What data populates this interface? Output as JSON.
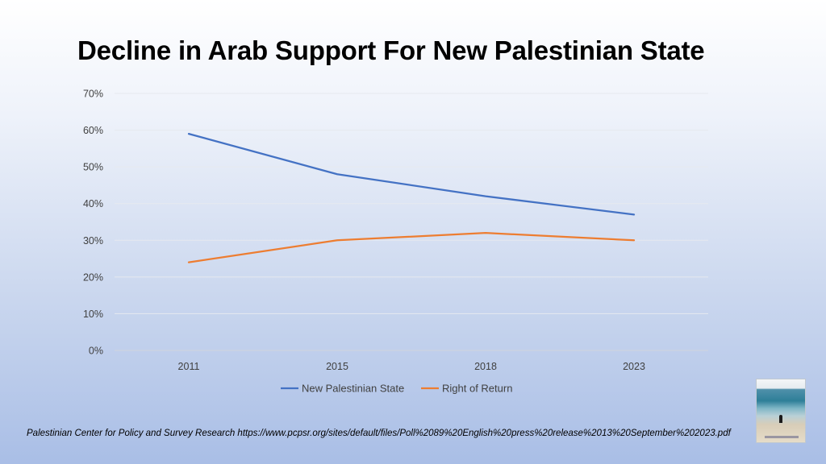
{
  "title": "Decline in Arab Support For New Palestinian State",
  "source": "Palestinian Center for Policy and Survey Research https://www.pcpsr.org/sites/default/files/Poll%2089%20English%20press%20release%2013%20September%202023.pdf",
  "chart_data": {
    "type": "line",
    "title": "",
    "xlabel": "",
    "ylabel": "",
    "categories": [
      "2011",
      "2015",
      "2018",
      "2023"
    ],
    "ylim": [
      0,
      70
    ],
    "yticks": [
      0,
      10,
      20,
      30,
      40,
      50,
      60,
      70
    ],
    "ytick_labels": [
      "0%",
      "10%",
      "20%",
      "30%",
      "40%",
      "50%",
      "60%",
      "70%"
    ],
    "grid": true,
    "legend": "bottom",
    "series": [
      {
        "name": "New Palestinian State",
        "color": "#4472C4",
        "values": [
          59,
          48,
          42,
          37
        ]
      },
      {
        "name": "Right of Return",
        "color": "#ED7D31",
        "values": [
          24,
          30,
          32,
          30
        ]
      }
    ]
  },
  "thumbnail_icon": "beach-photo-icon"
}
